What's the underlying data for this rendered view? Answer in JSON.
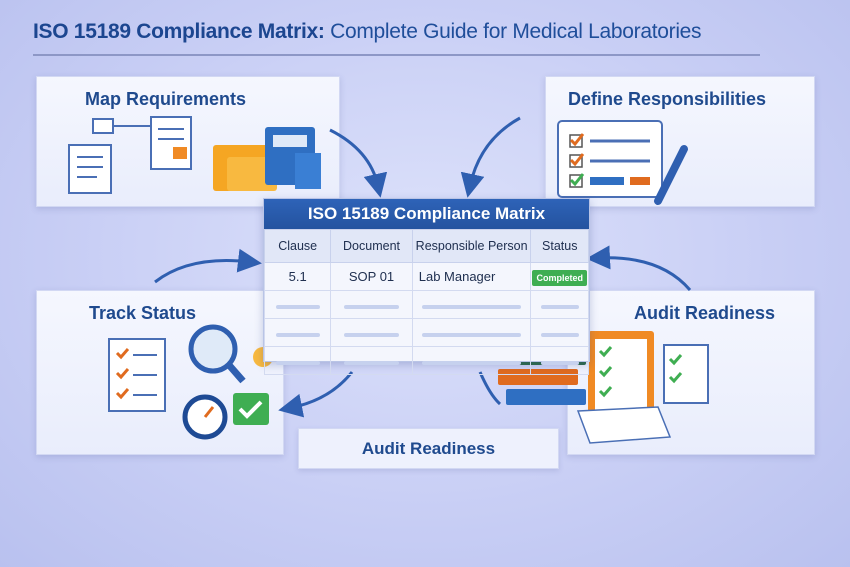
{
  "title": {
    "bold": "ISO 15189 Compliance Matrix:",
    "rest": " Complete Guide for Medical Laboratories"
  },
  "panels": {
    "map": "Map Requirements",
    "define": "Define Responsibilities",
    "track": "Track Status",
    "audit": "Audit Readiness"
  },
  "matrix": {
    "title": "ISO 15189 Compliance Matrix",
    "columns": [
      "Clause",
      "Document",
      "Responsible Person",
      "Status"
    ],
    "rows": [
      {
        "clause": "5.1",
        "document": "SOP 01",
        "person": "Lab Manager",
        "status": "Completed"
      }
    ],
    "status_color": "#3fae52"
  },
  "bottom_label": "Audit Readiness",
  "colors": {
    "accent": "#1f4a8e",
    "header": "#2e63b8",
    "background": "#c9cff5"
  }
}
